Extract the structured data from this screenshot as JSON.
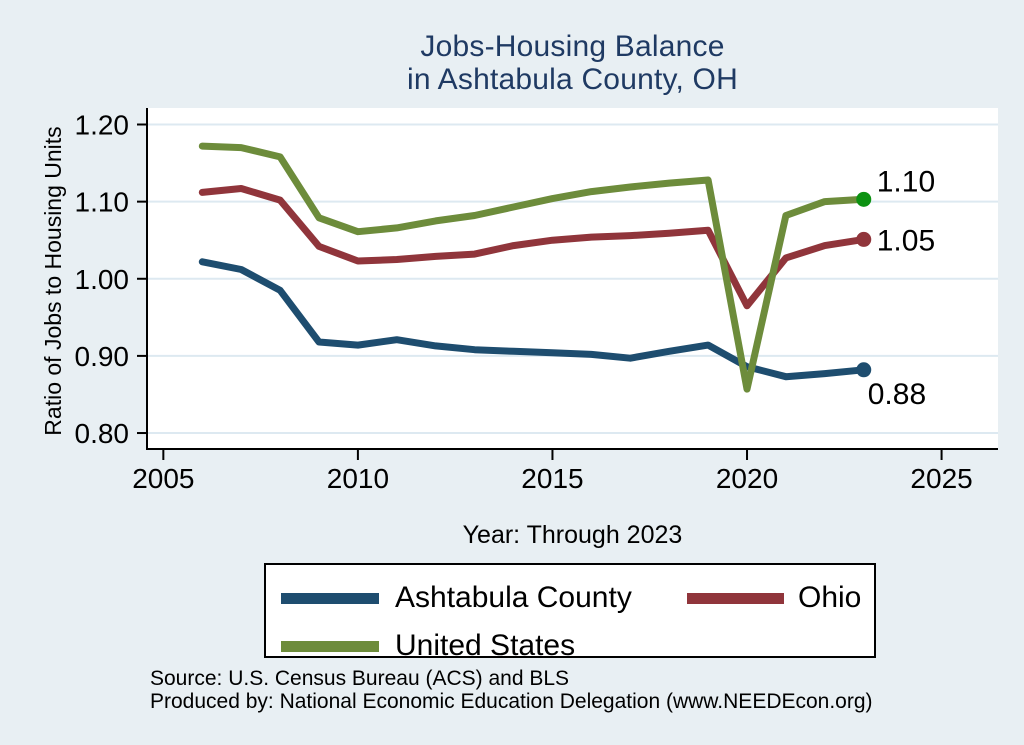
{
  "title": {
    "line1": "Jobs-Housing Balance",
    "line2": "in Ashtabula County, OH"
  },
  "axes": {
    "y_label": "Ratio of Jobs to Housing Units",
    "x_label": "Year: Through 2023",
    "y_ticks": [
      0.8,
      0.9,
      1.0,
      1.1,
      1.2
    ],
    "y_tick_labels": [
      "0.80",
      "0.90",
      "1.00",
      "1.10",
      "1.20"
    ],
    "x_ticks": [
      2005,
      2010,
      2015,
      2020,
      2025
    ],
    "x_tick_labels": [
      "2005",
      "2010",
      "2015",
      "2020",
      "2025"
    ]
  },
  "chart_data": {
    "type": "line",
    "title": "Jobs-Housing Balance in Ashtabula County, OH",
    "xlabel": "Year: Through 2023",
    "ylabel": "Ratio of Jobs to Housing Units",
    "xlim": [
      2004.58,
      2026.45
    ],
    "ylim": [
      0.7793,
      1.2214
    ],
    "grid": "horizontal",
    "legend_position": "bottom",
    "x": [
      2006,
      2007,
      2008,
      2009,
      2010,
      2011,
      2012,
      2013,
      2014,
      2015,
      2016,
      2017,
      2018,
      2019,
      2020,
      2021,
      2022,
      2023
    ],
    "series": [
      {
        "name": "Ashtabula County",
        "color": "#1e4d6f",
        "marker_color": "#1e4d6f",
        "values": [
          1.022,
          1.012,
          0.985,
          0.918,
          0.914,
          0.921,
          0.913,
          0.908,
          0.906,
          0.904,
          0.902,
          0.897,
          0.906,
          0.914,
          0.886,
          0.873,
          0.877,
          0.882
        ],
        "end_label": {
          "text": "0.88",
          "dx": 4,
          "dy": 34
        }
      },
      {
        "name": "Ohio",
        "color": "#90353b",
        "marker_color": "#90353b",
        "values": [
          1.112,
          1.117,
          1.102,
          1.042,
          1.023,
          1.025,
          1.029,
          1.032,
          1.043,
          1.05,
          1.054,
          1.056,
          1.059,
          1.063,
          0.965,
          1.027,
          1.043,
          1.051
        ],
        "end_label": {
          "text": "1.05",
          "dx": 13,
          "dy": 11
        }
      },
      {
        "name": "United States",
        "color": "#6d8c3b",
        "marker_color": "#0c9212",
        "values": [
          1.172,
          1.17,
          1.158,
          1.079,
          1.061,
          1.066,
          1.075,
          1.082,
          1.093,
          1.104,
          1.113,
          1.119,
          1.124,
          1.128,
          0.857,
          1.082,
          1.1,
          1.103
        ],
        "end_label": {
          "text": "1.10",
          "dx": 13,
          "dy": -8
        }
      }
    ]
  },
  "legend": {
    "items": [
      {
        "label": "Ashtabula County"
      },
      {
        "label": "Ohio"
      },
      {
        "label": "United States"
      }
    ]
  },
  "footer": {
    "source": "Source: U.S. Census Bureau (ACS) and BLS",
    "produced": "Produced by: National Economic Education Delegation (www.NEEDEcon.org)"
  },
  "colors": {
    "background": "#e8eff3",
    "plot_background": "#ffffff",
    "gridline": "#dde9f1",
    "axis": "#000000",
    "title": "#1f3a63"
  }
}
